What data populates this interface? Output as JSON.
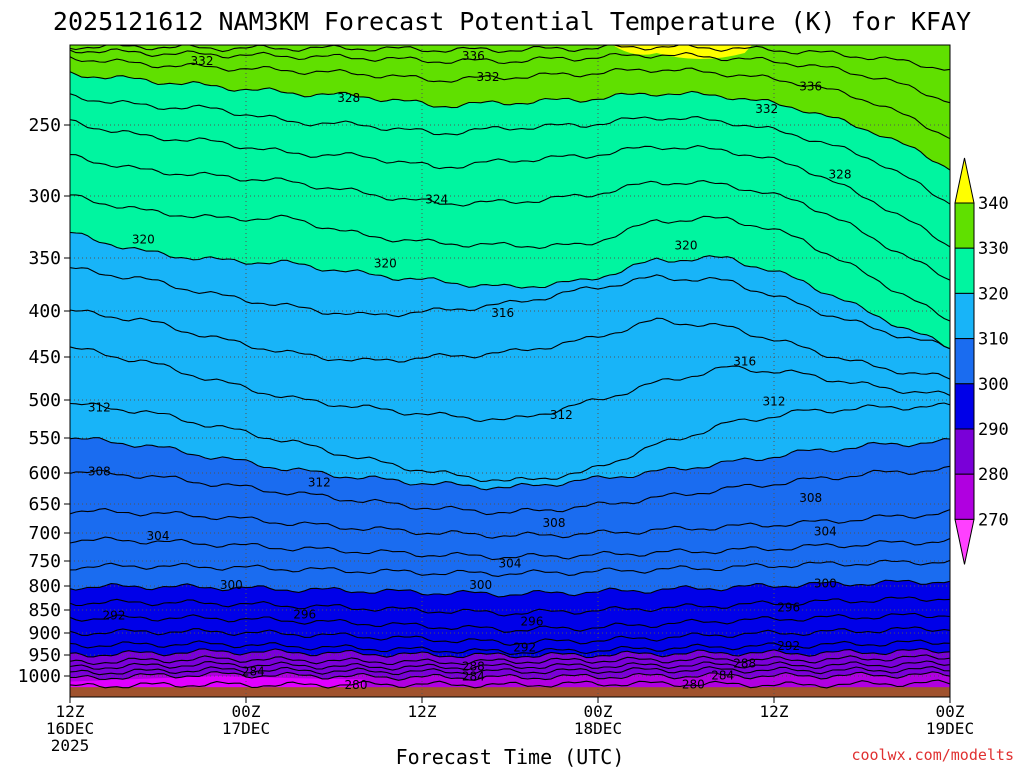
{
  "chart_data": {
    "type": "contour",
    "title": "2025121612 NAM3KM Forecast Potential Temperature (K) for KFAY",
    "xlabel": "Forecast Time (UTC)",
    "ylabel": "",
    "credit": "coolwx.com/modelts",
    "x_range_hours": [
      0,
      60
    ],
    "y_range_hpa": [
      200,
      1030
    ],
    "x_ticks": [
      {
        "hour": 0,
        "l1": "12Z",
        "l2": "16DEC",
        "l3": "2025"
      },
      {
        "hour": 12,
        "l1": "00Z",
        "l2": "17DEC",
        "l3": ""
      },
      {
        "hour": 24,
        "l1": "12Z",
        "l2": "",
        "l3": ""
      },
      {
        "hour": 36,
        "l1": "00Z",
        "l2": "18DEC",
        "l3": ""
      },
      {
        "hour": 48,
        "l1": "12Z",
        "l2": "",
        "l3": ""
      },
      {
        "hour": 60,
        "l1": "00Z",
        "l2": "19DEC",
        "l3": ""
      }
    ],
    "y_ticks": [
      250,
      300,
      350,
      400,
      450,
      500,
      550,
      600,
      650,
      700,
      750,
      800,
      850,
      900,
      950,
      1000
    ],
    "y_tick_labels": [
      "250",
      "300",
      "350",
      "400",
      "450",
      "500",
      "550",
      "600",
      "650",
      "700",
      "750",
      "800",
      "850",
      "900",
      "950",
      "1000"
    ],
    "colorbar": {
      "levels": [
        270,
        280,
        290,
        300,
        310,
        320,
        330,
        340
      ],
      "labels": [
        "270",
        "280",
        "290",
        "300",
        "310",
        "320",
        "330",
        "340"
      ],
      "colors": [
        "#ff40ff",
        "#b000e0",
        "#7a00d8",
        "#0000e8",
        "#1a6cf0",
        "#18b4f8",
        "#00f5a0",
        "#60e000",
        "#ffff00"
      ]
    },
    "ground_color": "#a0522d",
    "bands": [
      {
        "min": 276,
        "max": 280,
        "color": "#e000ff",
        "p_start": 1012,
        "p_end": 1012,
        "p_hump": 994,
        "hump_at": 0.2
      },
      {
        "min": 280,
        "max": 290,
        "color": "#8a00e0",
        "p_start": 945,
        "p_end": 935,
        "p_hump": 968,
        "hump_at": 0.6
      },
      {
        "min": 290,
        "max": 300,
        "color": "#0000e8",
        "p_start": 762,
        "p_end": 788,
        "p_hump": 790,
        "hump_at": 0.45
      },
      {
        "min": 300,
        "max": 310,
        "color": "#1a6cf0",
        "p_start": 548,
        "p_end": 575,
        "p_hump": 640,
        "hump_at": 0.45
      },
      {
        "min": 310,
        "max": 320,
        "color": "#18b4f8",
        "p_start": 325,
        "p_end": 455,
        "p_hump": 350,
        "hump_at": 0.35
      },
      {
        "min": 320,
        "max": 330,
        "color": "#00f5a0",
        "p_start": 205,
        "p_end": 300,
        "p_hump": 255,
        "hump_at": 0.3
      },
      {
        "min": 330,
        "max": 340,
        "color": "#60e000",
        "p_start": 200,
        "p_end": 200,
        "p_hump": 200,
        "hump_at": 0.5
      }
    ],
    "contours": [
      {
        "theta": 280,
        "p": [
          1015,
          1013,
          1012,
          1013,
          1012,
          1012,
          1013,
          1011,
          1011,
          1012,
          1013,
          1011,
          1010
        ]
      },
      {
        "theta": 282,
        "p": [
          1004,
          1000,
          996,
          999,
          1001,
          1002,
          1002,
          1001,
          1000,
          999,
          1000,
          998,
          997
        ]
      },
      {
        "theta": 284,
        "p": [
          993,
          989,
          985,
          987,
          989,
          990,
          989,
          988,
          986,
          985,
          987,
          986,
          984
        ]
      },
      {
        "theta": 286,
        "p": [
          980,
          976,
          972,
          975,
          978,
          979,
          977,
          976,
          975,
          973,
          975,
          973,
          970
        ]
      },
      {
        "theta": 288,
        "p": [
          968,
          963,
          959,
          962,
          965,
          967,
          965,
          963,
          962,
          960,
          962,
          958,
          955
        ]
      },
      {
        "theta": 290,
        "p": [
          950,
          946,
          942,
          944,
          947,
          950,
          951,
          950,
          947,
          945,
          946,
          943,
          940
        ]
      },
      {
        "theta": 292,
        "p": [
          928,
          926,
          925,
          930,
          935,
          939,
          943,
          940,
          935,
          931,
          928,
          924,
          920
        ]
      },
      {
        "theta": 294,
        "p": [
          900,
          897,
          897,
          902,
          908,
          915,
          922,
          918,
          911,
          903,
          899,
          894,
          890
        ]
      },
      {
        "theta": 296,
        "p": [
          868,
          867,
          868,
          873,
          879,
          886,
          893,
          889,
          881,
          873,
          868,
          864,
          860
        ]
      },
      {
        "theta": 298,
        "p": [
          835,
          834,
          836,
          841,
          846,
          852,
          857,
          852,
          846,
          840,
          834,
          829,
          825
        ]
      },
      {
        "theta": 300,
        "p": [
          802,
          801,
          803,
          807,
          810,
          814,
          817,
          813,
          808,
          803,
          797,
          794,
          790
        ]
      },
      {
        "theta": 302,
        "p": [
          762,
          760,
          762,
          766,
          770,
          774,
          775,
          772,
          767,
          763,
          757,
          754,
          751
        ]
      },
      {
        "theta": 304,
        "p": [
          712,
          714,
          720,
          727,
          733,
          739,
          743,
          740,
          735,
          731,
          725,
          719,
          714
        ]
      },
      {
        "theta": 306,
        "p": [
          662,
          665,
          672,
          683,
          692,
          700,
          705,
          702,
          695,
          689,
          683,
          674,
          665
        ]
      },
      {
        "theta": 308,
        "p": [
          598,
          604,
          618,
          632,
          645,
          658,
          665,
          655,
          640,
          625,
          612,
          600,
          595
        ]
      },
      {
        "theta": 310,
        "p": [
          550,
          560,
          578,
          595,
          608,
          618,
          624,
          612,
          598,
          585,
          570,
          560,
          555
        ]
      },
      {
        "theta": 312,
        "p": [
          505,
          515,
          535,
          555,
          580,
          600,
          614,
          600,
          560,
          530,
          515,
          510,
          508
        ]
      },
      {
        "theta": 314,
        "p": [
          440,
          455,
          478,
          498,
          510,
          520,
          527,
          505,
          480,
          462,
          470,
          485,
          495
        ]
      },
      {
        "theta": 316,
        "p": [
          400,
          410,
          430,
          446,
          455,
          450,
          445,
          432,
          410,
          418,
          440,
          462,
          475
        ]
      },
      {
        "theta": 318,
        "p": [
          360,
          370,
          385,
          396,
          405,
          400,
          393,
          380,
          368,
          372,
          395,
          420,
          440
        ]
      },
      {
        "theta": 320,
        "p": [
          330,
          345,
          352,
          355,
          365,
          372,
          378,
          372,
          352,
          350,
          372,
          405,
          440
        ]
      },
      {
        "theta": 322,
        "p": [
          300,
          312,
          318,
          318,
          332,
          338,
          340,
          340,
          320,
          318,
          335,
          370,
          410
        ]
      },
      {
        "theta": 324,
        "p": [
          272,
          282,
          286,
          290,
          298,
          306,
          305,
          300,
          290,
          292,
          305,
          335,
          370
        ]
      },
      {
        "theta": 326,
        "p": [
          248,
          258,
          262,
          270,
          272,
          280,
          275,
          272,
          265,
          268,
          280,
          305,
          340
        ]
      },
      {
        "theta": 328,
        "p": [
          232,
          238,
          240,
          248,
          250,
          256,
          252,
          250,
          245,
          248,
          258,
          275,
          305
        ]
      },
      {
        "theta": 330,
        "p": [
          218,
          222,
          226,
          230,
          232,
          238,
          236,
          234,
          230,
          232,
          240,
          255,
          280
        ]
      },
      {
        "theta": 332,
        "p": [
          208,
          212,
          214,
          216,
          218,
          222,
          220,
          218,
          215,
          218,
          224,
          236,
          258
        ]
      },
      {
        "theta": 334,
        "p": [
          203,
          205,
          206,
          207,
          208,
          210,
          210,
          208,
          206,
          208,
          212,
          220,
          235
        ]
      },
      {
        "theta": 336,
        "p": [
          201,
          201,
          202,
          202,
          202,
          203,
          203,
          202,
          201,
          202,
          204,
          208,
          215
        ]
      }
    ],
    "contour_labels": [
      {
        "theta": 280,
        "text": "280",
        "hour": 19.5,
        "p": 1013
      },
      {
        "theta": 280,
        "text": "280",
        "hour": 42.5,
        "p": 1012
      },
      {
        "theta": 284,
        "text": "284",
        "hour": 12.5,
        "p": 989
      },
      {
        "theta": 284,
        "text": "284",
        "hour": 27.5,
        "p": 1001
      },
      {
        "theta": 284,
        "text": "284",
        "hour": 44.5,
        "p": 999
      },
      {
        "theta": 288,
        "text": "288",
        "hour": 27.5,
        "p": 977
      },
      {
        "theta": 288,
        "text": "288",
        "hour": 46.0,
        "p": 970
      },
      {
        "theta": 292,
        "text": "292",
        "hour": 3.0,
        "p": 862
      },
      {
        "theta": 292,
        "text": "292",
        "hour": 31.0,
        "p": 933
      },
      {
        "theta": 292,
        "text": "292",
        "hour": 49.0,
        "p": 930
      },
      {
        "theta": 296,
        "text": "296",
        "hour": 16.0,
        "p": 860
      },
      {
        "theta": 296,
        "text": "296",
        "hour": 31.5,
        "p": 875
      },
      {
        "theta": 296,
        "text": "296",
        "hour": 49.0,
        "p": 845
      },
      {
        "theta": 300,
        "text": "300",
        "hour": 11.0,
        "p": 798
      },
      {
        "theta": 300,
        "text": "300",
        "hour": 28.0,
        "p": 798
      },
      {
        "theta": 300,
        "text": "300",
        "hour": 51.5,
        "p": 795
      },
      {
        "theta": 304,
        "text": "304",
        "hour": 6.0,
        "p": 705
      },
      {
        "theta": 304,
        "text": "304",
        "hour": 30.0,
        "p": 755
      },
      {
        "theta": 304,
        "text": "304",
        "hour": 51.5,
        "p": 697
      },
      {
        "theta": 308,
        "text": "308",
        "hour": 2.0,
        "p": 598
      },
      {
        "theta": 308,
        "text": "308",
        "hour": 33.0,
        "p": 683
      },
      {
        "theta": 308,
        "text": "308",
        "hour": 50.5,
        "p": 640
      },
      {
        "theta": 312,
        "text": "312",
        "hour": 2.0,
        "p": 510
      },
      {
        "theta": 312,
        "text": "312",
        "hour": 17.0,
        "p": 615
      },
      {
        "theta": 312,
        "text": "312",
        "hour": 33.5,
        "p": 520
      },
      {
        "theta": 312,
        "text": "312",
        "hour": 48.0,
        "p": 502
      },
      {
        "theta": 316,
        "text": "316",
        "hour": 29.5,
        "p": 402
      },
      {
        "theta": 316,
        "text": "316",
        "hour": 46.0,
        "p": 455
      },
      {
        "theta": 320,
        "text": "320",
        "hour": 5.0,
        "p": 335
      },
      {
        "theta": 320,
        "text": "320",
        "hour": 21.5,
        "p": 355
      },
      {
        "theta": 320,
        "text": "320",
        "hour": 42.0,
        "p": 340
      },
      {
        "theta": 324,
        "text": "324",
        "hour": 25.0,
        "p": 303
      },
      {
        "theta": 328,
        "text": "328",
        "hour": 19.0,
        "p": 233
      },
      {
        "theta": 328,
        "text": "328",
        "hour": 52.5,
        "p": 285
      },
      {
        "theta": 332,
        "text": "332",
        "hour": 9.0,
        "p": 210
      },
      {
        "theta": 332,
        "text": "332",
        "hour": 28.5,
        "p": 220
      },
      {
        "theta": 332,
        "text": "332",
        "hour": 47.5,
        "p": 240
      },
      {
        "theta": 336,
        "text": "336",
        "hour": 27.5,
        "p": 207
      },
      {
        "theta": 336,
        "text": "336",
        "hour": 50.5,
        "p": 226
      }
    ]
  }
}
